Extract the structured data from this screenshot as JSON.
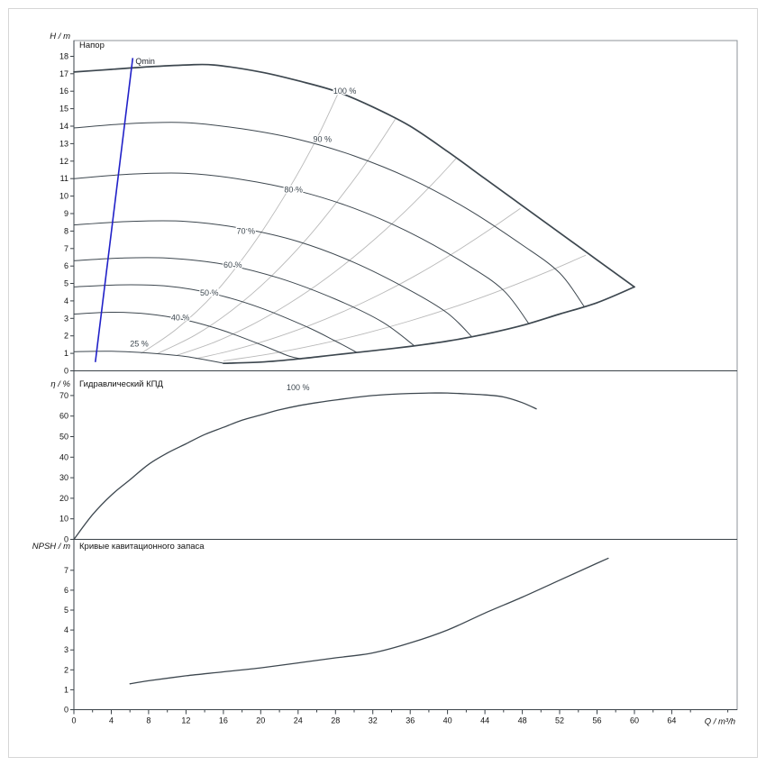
{
  "figure": {
    "colors": {
      "background": "#ffffff",
      "outer_border": "#d6d6d6",
      "frame": "#8d9398",
      "axis": "#3a4248",
      "curve": "#3d474f",
      "iso": "#b9b9b9",
      "qmin": "#2121c8",
      "tick_text": "#111111",
      "label_text": "#3d474f"
    },
    "x_axis": {
      "label": "Q / m³/h",
      "ticks": [
        0,
        4,
        8,
        12,
        16,
        20,
        24,
        28,
        32,
        36,
        40,
        44,
        48,
        52,
        56,
        60,
        64
      ],
      "minor_step": 2,
      "lim": [
        0,
        71
      ]
    }
  },
  "chart_data": [
    {
      "id": "head",
      "type": "line",
      "title": "Напор",
      "ylabel": "H / m",
      "xlabel": "Q / m³/h",
      "ylim": [
        0,
        18.9
      ],
      "y_ticks": [
        0,
        1,
        2,
        3,
        4,
        5,
        6,
        7,
        8,
        9,
        10,
        11,
        12,
        13,
        14,
        15,
        16,
        17,
        18
      ],
      "series": [
        {
          "name": "limit-curve-100-percent",
          "width": 1.7,
          "points": [
            [
              0,
              17.1
            ],
            [
              4,
              17.25
            ],
            [
              8,
              17.4
            ],
            [
              12,
              17.5
            ],
            [
              15,
              17.5
            ],
            [
              20,
              17.1
            ],
            [
              24,
              16.6
            ],
            [
              28,
              16.0
            ],
            [
              32,
              15.1
            ],
            [
              36,
              14.0
            ],
            [
              40,
              12.55
            ],
            [
              44,
              11.0
            ],
            [
              48,
              9.45
            ],
            [
              52,
              7.9
            ],
            [
              56,
              6.35
            ],
            [
              60,
              4.8
            ]
          ]
        },
        {
          "name": "limit-curve-min",
          "width": 1.7,
          "points": [
            [
              60,
              4.8
            ],
            [
              56,
              3.9
            ],
            [
              52,
              3.25
            ],
            [
              48,
              2.6
            ],
            [
              44,
              2.1
            ],
            [
              40,
              1.7
            ],
            [
              36,
              1.4
            ],
            [
              32,
              1.15
            ],
            [
              28,
              0.92
            ],
            [
              24,
              0.68
            ],
            [
              20,
              0.5
            ],
            [
              16,
              0.43
            ]
          ]
        },
        {
          "name": "speed-curve-90-percent",
          "width": 1,
          "points": [
            [
              0,
              13.9
            ],
            [
              6,
              14.15
            ],
            [
              12,
              14.2
            ],
            [
              18,
              13.85
            ],
            [
              24,
              13.25
            ],
            [
              30,
              12.3
            ],
            [
              36,
              11.0
            ],
            [
              42,
              9.3
            ],
            [
              48,
              7.2
            ],
            [
              52,
              5.6
            ],
            [
              54.6,
              3.7
            ]
          ]
        },
        {
          "name": "speed-curve-80-percent",
          "width": 1,
          "points": [
            [
              0,
              11.0
            ],
            [
              6,
              11.25
            ],
            [
              12,
              11.3
            ],
            [
              18,
              10.95
            ],
            [
              24,
              10.3
            ],
            [
              30,
              9.3
            ],
            [
              36,
              7.9
            ],
            [
              42,
              6.1
            ],
            [
              46,
              4.6
            ],
            [
              48.7,
              2.7
            ]
          ]
        },
        {
          "name": "speed-curve-70-percent",
          "width": 1,
          "points": [
            [
              0,
              8.35
            ],
            [
              6,
              8.55
            ],
            [
              12,
              8.55
            ],
            [
              18,
              8.15
            ],
            [
              24,
              7.4
            ],
            [
              30,
              6.2
            ],
            [
              36,
              4.6
            ],
            [
              40,
              3.3
            ],
            [
              42.6,
              1.95
            ]
          ]
        },
        {
          "name": "speed-curve-60-percent",
          "width": 1,
          "points": [
            [
              0,
              6.3
            ],
            [
              5,
              6.45
            ],
            [
              10,
              6.45
            ],
            [
              16,
              6.1
            ],
            [
              22,
              5.3
            ],
            [
              28,
              4.1
            ],
            [
              33,
              2.8
            ],
            [
              36.4,
              1.45
            ]
          ]
        },
        {
          "name": "speed-curve-50-percent",
          "width": 1,
          "points": [
            [
              0,
              4.8
            ],
            [
              5,
              4.92
            ],
            [
              10,
              4.85
            ],
            [
              15,
              4.4
            ],
            [
              20,
              3.6
            ],
            [
              25,
              2.5
            ],
            [
              28,
              1.7
            ],
            [
              30.3,
              1.05
            ]
          ]
        },
        {
          "name": "speed-curve-40-percent",
          "width": 1,
          "points": [
            [
              0,
              3.25
            ],
            [
              4,
              3.35
            ],
            [
              8,
              3.25
            ],
            [
              12,
              2.9
            ],
            [
              16,
              2.3
            ],
            [
              20,
              1.5
            ],
            [
              23,
              0.85
            ],
            [
              24.3,
              0.69
            ]
          ]
        },
        {
          "name": "speed-curve-25-percent",
          "width": 1,
          "points": [
            [
              0,
              1.1
            ],
            [
              4,
              1.12
            ],
            [
              8,
              1.02
            ],
            [
              12,
              0.82
            ],
            [
              16,
              0.44
            ]
          ]
        }
      ],
      "iso_lines": {
        "paths": [
          [
            [
              7.2,
              1.0
            ],
            [
              11,
              2.4
            ],
            [
              15,
              4.4
            ],
            [
              19,
              7.1
            ],
            [
              23,
              10.4
            ],
            [
              26,
              13.3
            ],
            [
              28.3,
              15.9
            ]
          ],
          [
            [
              9,
              1.0
            ],
            [
              13,
              2.05
            ],
            [
              17,
              3.5
            ],
            [
              21,
              5.35
            ],
            [
              25,
              7.6
            ],
            [
              29,
              10.25
            ],
            [
              32,
              12.45
            ],
            [
              34.4,
              14.4
            ]
          ],
          [
            [
              11,
              0.88
            ],
            [
              15,
              1.63
            ],
            [
              19,
              2.62
            ],
            [
              23,
              3.84
            ],
            [
              27,
              5.29
            ],
            [
              31,
              6.98
            ],
            [
              35,
              8.89
            ],
            [
              38.5,
              10.76
            ],
            [
              40.9,
              12.15
            ]
          ],
          [
            [
              13,
              0.69
            ],
            [
              17,
              1.18
            ],
            [
              21,
              1.8
            ],
            [
              25,
              2.55
            ],
            [
              29,
              3.43
            ],
            [
              33,
              4.44
            ],
            [
              37,
              5.58
            ],
            [
              41,
              6.86
            ],
            [
              45,
              8.26
            ],
            [
              47.8,
              9.3
            ]
          ],
          [
            [
              16,
              0.57
            ],
            [
              21,
              0.97
            ],
            [
              26,
              1.49
            ],
            [
              31,
              2.12
            ],
            [
              36,
              2.86
            ],
            [
              41,
              3.71
            ],
            [
              46,
              4.67
            ],
            [
              51,
              5.74
            ],
            [
              54.8,
              6.62
            ]
          ]
        ]
      },
      "qmin": {
        "label": "Qmin",
        "points": [
          [
            2.3,
            0.5
          ],
          [
            6.3,
            17.9
          ]
        ],
        "label_pos": [
          6.6,
          17.55
        ]
      },
      "curve_labels": [
        {
          "text": "100 %",
          "pos": [
            29.0,
            15.85
          ]
        },
        {
          "text": "90 %",
          "pos": [
            26.6,
            13.1
          ]
        },
        {
          "text": "80 %",
          "pos": [
            23.5,
            10.2
          ]
        },
        {
          "text": "70 %",
          "pos": [
            18.4,
            7.85
          ]
        },
        {
          "text": "60 %",
          "pos": [
            17.0,
            5.9
          ]
        },
        {
          "text": "50 %",
          "pos": [
            14.5,
            4.3
          ]
        },
        {
          "text": "40 %",
          "pos": [
            11.4,
            2.9
          ]
        },
        {
          "text": "25 %",
          "pos": [
            7.0,
            1.4
          ]
        }
      ]
    },
    {
      "id": "eff",
      "type": "line",
      "title": "Гидравлический КПД",
      "ylabel": "η / %",
      "xlabel": "Q / m³/h",
      "ylim": [
        0,
        82
      ],
      "y_ticks": [
        0,
        10,
        20,
        30,
        40,
        50,
        60,
        70
      ],
      "series": [
        {
          "name": "efficiency-curve-100-percent",
          "width": 1.3,
          "points": [
            [
              0,
              0
            ],
            [
              2,
              12
            ],
            [
              4,
              21.5
            ],
            [
              6,
              29
            ],
            [
              8,
              36.5
            ],
            [
              10,
              42
            ],
            [
              12,
              46.5
            ],
            [
              14,
              51
            ],
            [
              16,
              54.5
            ],
            [
              18,
              58
            ],
            [
              20,
              60.5
            ],
            [
              22,
              63
            ],
            [
              24,
              65
            ],
            [
              26,
              66.5
            ],
            [
              28,
              67.8
            ],
            [
              30,
              69
            ],
            [
              32,
              70
            ],
            [
              34,
              70.6
            ],
            [
              36,
              71
            ],
            [
              38,
              71.2
            ],
            [
              40,
              71.2
            ],
            [
              42,
              70.8
            ],
            [
              44,
              70.3
            ],
            [
              46,
              69.3
            ],
            [
              48,
              66.5
            ],
            [
              49.5,
              63.5
            ]
          ]
        }
      ],
      "curve_labels": [
        {
          "text": "100 %",
          "pos": [
            24,
            72.5
          ]
        }
      ]
    },
    {
      "id": "npsh",
      "type": "line",
      "title": "Кривые кавитационного запаса",
      "ylabel": "NPSH / m",
      "xlabel": "Q / m³/h",
      "ylim": [
        0,
        8.55
      ],
      "y_ticks": [
        0,
        1,
        2,
        3,
        4,
        5,
        6,
        7
      ],
      "series": [
        {
          "name": "npsh-curve",
          "width": 1.3,
          "points": [
            [
              6,
              1.3
            ],
            [
              8,
              1.45
            ],
            [
              12,
              1.7
            ],
            [
              16,
              1.9
            ],
            [
              20,
              2.1
            ],
            [
              24,
              2.35
            ],
            [
              28,
              2.6
            ],
            [
              32,
              2.85
            ],
            [
              36,
              3.35
            ],
            [
              40,
              4.0
            ],
            [
              44,
              4.85
            ],
            [
              48,
              5.65
            ],
            [
              52,
              6.5
            ],
            [
              56,
              7.35
            ],
            [
              57.2,
              7.6
            ]
          ]
        }
      ]
    }
  ]
}
